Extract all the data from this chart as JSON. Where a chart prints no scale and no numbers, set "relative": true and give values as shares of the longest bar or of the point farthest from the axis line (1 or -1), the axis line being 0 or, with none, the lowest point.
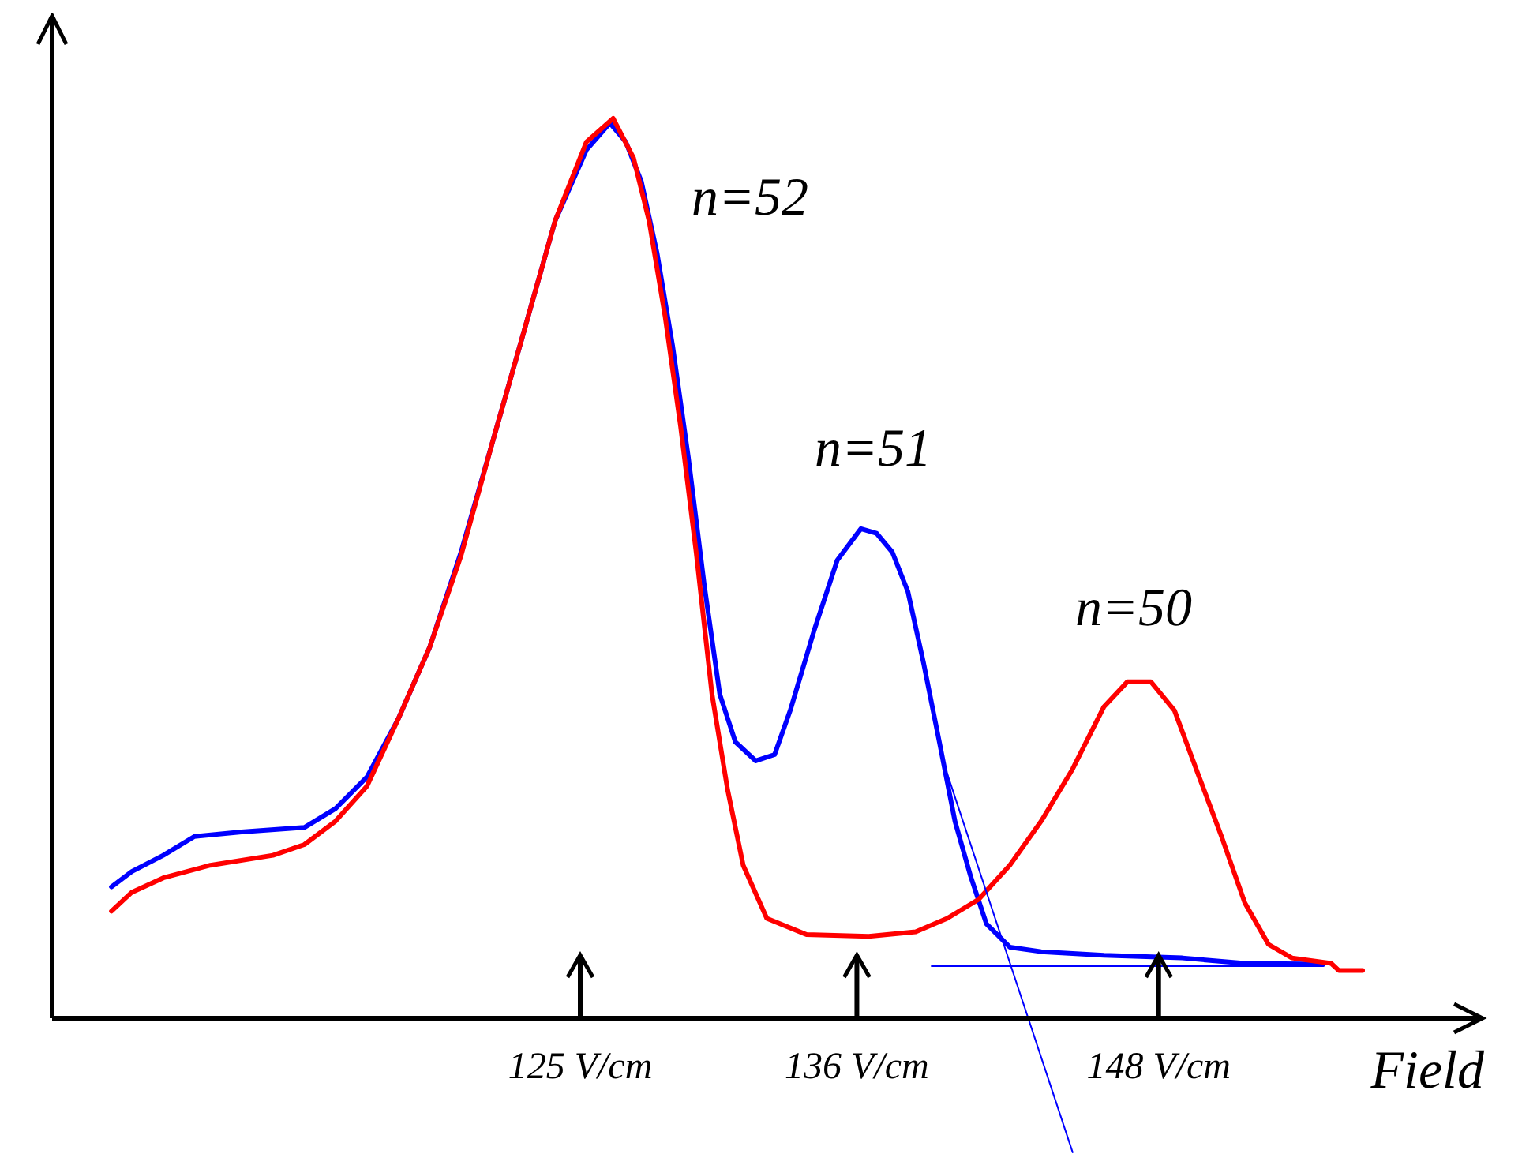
{
  "chart_data": {
    "type": "line",
    "relative": true,
    "xlabel": "Field",
    "xlim": [
      104,
      160
    ],
    "xticks": [
      {
        "value": 125,
        "label": "125 V/cm"
      },
      {
        "value": 136,
        "label": "136 V/cm"
      },
      {
        "value": 148,
        "label": "148 V/cm"
      }
    ],
    "annotations": [
      "n=52",
      "n=51",
      "n=50"
    ],
    "series": [
      {
        "color": "#0000ff",
        "x": [
          106.36,
          107.17,
          108.42,
          109.66,
          111.53,
          114.03,
          115.27,
          116.52,
          117.77,
          119.01,
          120.26,
          121.51,
          122.76,
          124.0,
          125.25,
          126.18,
          126.81,
          127.43,
          128.05,
          128.68,
          129.3,
          129.93,
          130.55,
          131.17,
          131.98,
          132.73,
          133.35,
          134.29,
          135.22,
          136.16,
          136.78,
          137.41,
          138.03,
          138.65,
          139.28,
          139.9,
          140.52,
          141.15,
          142.08,
          143.33,
          145.82,
          148.94,
          151.43,
          154.55
        ],
        "values": [
          0.146,
          0.163,
          0.181,
          0.202,
          0.207,
          0.212,
          0.233,
          0.268,
          0.333,
          0.412,
          0.518,
          0.64,
          0.763,
          0.886,
          0.965,
          0.995,
          0.974,
          0.93,
          0.851,
          0.746,
          0.623,
          0.482,
          0.36,
          0.307,
          0.286,
          0.293,
          0.342,
          0.43,
          0.509,
          0.544,
          0.539,
          0.518,
          0.474,
          0.395,
          0.307,
          0.219,
          0.158,
          0.105,
          0.079,
          0.074,
          0.07,
          0.067,
          0.061,
          0.06
        ]
      },
      {
        "color": "#ff0000",
        "x": [
          106.36,
          107.17,
          108.42,
          110.29,
          112.78,
          114.03,
          115.27,
          116.52,
          117.77,
          119.01,
          120.26,
          121.51,
          122.76,
          124.0,
          125.25,
          126.31,
          127.12,
          127.74,
          128.37,
          128.99,
          129.61,
          130.24,
          130.86,
          131.48,
          132.42,
          134.0,
          136.47,
          138.34,
          139.59,
          140.84,
          142.08,
          143.33,
          144.58,
          145.82,
          146.76,
          147.69,
          148.63,
          149.56,
          150.5,
          151.43,
          152.37,
          153.3,
          154.86,
          155.17,
          156.11
        ],
        "values": [
          0.119,
          0.14,
          0.156,
          0.17,
          0.181,
          0.193,
          0.219,
          0.258,
          0.333,
          0.412,
          0.514,
          0.64,
          0.763,
          0.886,
          0.974,
          1.0,
          0.956,
          0.886,
          0.781,
          0.658,
          0.518,
          0.36,
          0.254,
          0.17,
          0.111,
          0.093,
          0.091,
          0.096,
          0.111,
          0.132,
          0.17,
          0.219,
          0.277,
          0.346,
          0.374,
          0.374,
          0.342,
          0.272,
          0.202,
          0.128,
          0.082,
          0.067,
          0.061,
          0.053,
          0.053
        ]
      },
      {
        "color": "#0000ff",
        "x": [
          139.59,
          144.58
        ],
        "values": [
          0.272,
          -0.149
        ]
      },
      {
        "color": "#0000ff",
        "x": [
          138.97,
          154.55
        ],
        "values": [
          0.058,
          0.058
        ]
      }
    ]
  }
}
